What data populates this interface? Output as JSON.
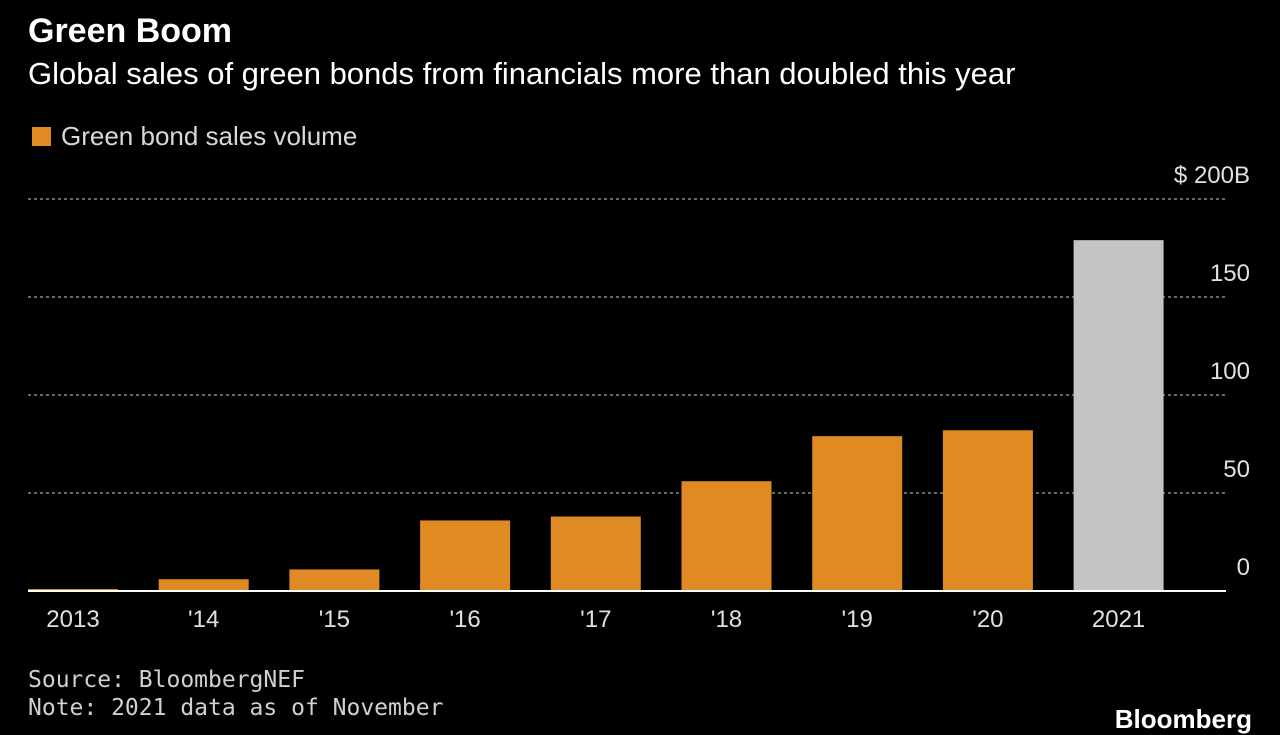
{
  "header": {
    "title": "Green Boom",
    "subtitle": "Global sales of green bonds from financials more than doubled this year"
  },
  "legend": {
    "label": "Green bond sales volume",
    "color": "#e08a24"
  },
  "footer": {
    "source": "Source: BloombergNEF",
    "note": "Note: 2021 data as of November",
    "brand": "Bloomberg"
  },
  "chart_data": {
    "type": "bar",
    "categories": [
      "2013",
      "'14",
      "'15",
      "'16",
      "'17",
      "'18",
      "'19",
      "'20",
      "2021"
    ],
    "values": [
      1,
      6,
      11,
      36,
      38,
      56,
      79,
      82,
      179
    ],
    "bar_colors": [
      "#e08a24",
      "#e08a24",
      "#e08a24",
      "#e08a24",
      "#e08a24",
      "#e08a24",
      "#e08a24",
      "#e08a24",
      "#c4c4c4"
    ],
    "y_ticks": [
      0,
      50,
      100,
      150,
      200
    ],
    "y_tick_labels": [
      "0",
      "50",
      "100",
      "150",
      "$ 200B"
    ],
    "ylim": [
      0,
      200
    ],
    "grid": true,
    "y_axis_position": "right"
  }
}
